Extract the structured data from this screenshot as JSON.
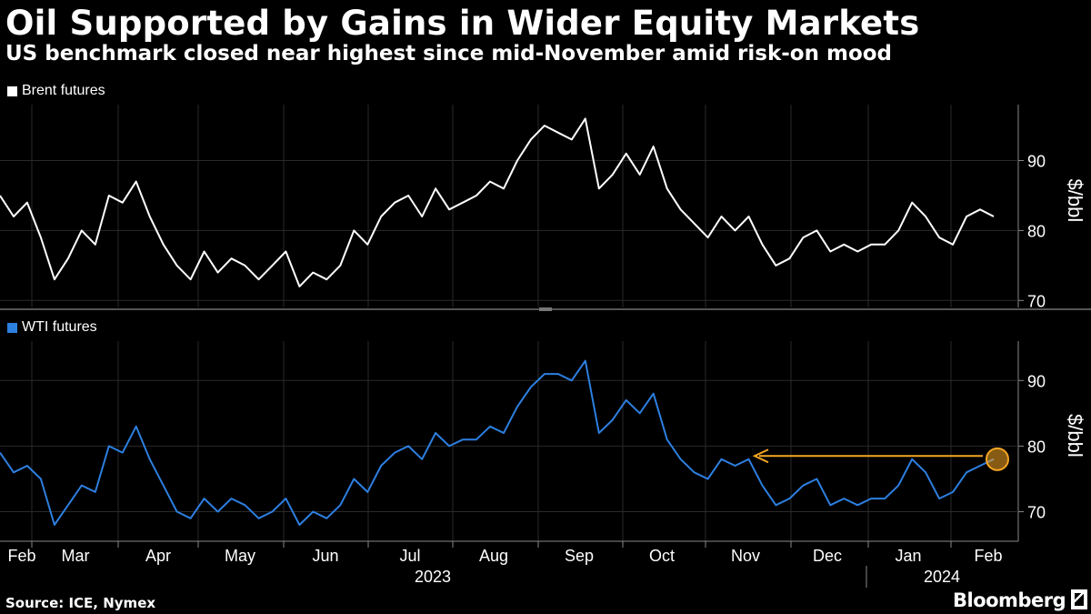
{
  "title": "Oil Supported by Gains in Wider Equity Markets",
  "subtitle": "US benchmark closed near highest since mid-November amid risk-on mood",
  "source": "Source: ICE, Nymex",
  "brand": "Bloomberg",
  "colors": {
    "brent": "#ffffff",
    "wti": "#2d7fe0",
    "annotation": "#f5a623",
    "grid": "#2a2a2a",
    "divider": "#555555"
  },
  "chart_data": [
    {
      "type": "line",
      "legend": "Brent futures",
      "ylabel": "$/bbl",
      "ylim": [
        69,
        98
      ],
      "yticks": [
        70,
        80,
        90
      ],
      "x": [
        0,
        5,
        10,
        15,
        20,
        25,
        30,
        35,
        40,
        45,
        50,
        55,
        60,
        65,
        70,
        75,
        80,
        85,
        90,
        95,
        100,
        105,
        110,
        115,
        120,
        125,
        130,
        135,
        140,
        145,
        150,
        155,
        160,
        165,
        170,
        175,
        180,
        185,
        190,
        195,
        200,
        205,
        210,
        215,
        220,
        225,
        230,
        235,
        240,
        245,
        250,
        255,
        260,
        265,
        270,
        275,
        280,
        285,
        290,
        295,
        300,
        305,
        310,
        315,
        320,
        325,
        330,
        335,
        340,
        345,
        350,
        355,
        360,
        365
      ],
      "values": [
        85,
        82,
        84,
        79,
        73,
        76,
        80,
        78,
        85,
        84,
        87,
        82,
        78,
        75,
        73,
        77,
        74,
        76,
        75,
        73,
        75,
        77,
        72,
        74,
        73,
        75,
        80,
        78,
        82,
        84,
        85,
        82,
        86,
        83,
        84,
        85,
        87,
        86,
        90,
        93,
        95,
        94,
        93,
        96,
        86,
        88,
        91,
        88,
        92,
        86,
        83,
        81,
        79,
        82,
        80,
        82,
        78,
        75,
        76,
        79,
        80,
        77,
        78,
        77,
        78,
        78,
        80,
        84,
        82,
        79,
        78,
        82,
        83,
        82
      ],
      "dates_shown": "2023-02-01 to 2024-02-05"
    },
    {
      "type": "line",
      "legend": "WTI futures",
      "ylabel": "$/bbl",
      "ylim": [
        65.5,
        96
      ],
      "yticks": [
        70,
        80,
        90
      ],
      "x": [
        0,
        5,
        10,
        15,
        20,
        25,
        30,
        35,
        40,
        45,
        50,
        55,
        60,
        65,
        70,
        75,
        80,
        85,
        90,
        95,
        100,
        105,
        110,
        115,
        120,
        125,
        130,
        135,
        140,
        145,
        150,
        155,
        160,
        165,
        170,
        175,
        180,
        185,
        190,
        195,
        200,
        205,
        210,
        215,
        220,
        225,
        230,
        235,
        240,
        245,
        250,
        255,
        260,
        265,
        270,
        275,
        280,
        285,
        290,
        295,
        300,
        305,
        310,
        315,
        320,
        325,
        330,
        335,
        340,
        345,
        350,
        355,
        360,
        365
      ],
      "values": [
        79,
        76,
        77,
        75,
        68,
        71,
        74,
        73,
        80,
        79,
        83,
        78,
        74,
        70,
        69,
        72,
        70,
        72,
        71,
        69,
        70,
        72,
        68,
        70,
        69,
        71,
        75,
        73,
        77,
        79,
        80,
        78,
        82,
        80,
        81,
        81,
        83,
        82,
        86,
        89,
        91,
        91,
        90,
        93,
        82,
        84,
        87,
        85,
        88,
        81,
        78,
        76,
        75,
        78,
        77,
        78,
        74,
        71,
        72,
        74,
        75,
        71,
        72,
        71,
        72,
        72,
        74,
        78,
        76,
        72,
        73,
        76,
        77,
        78
      ],
      "annotation": "arrow pointing to mid-November level from latest close",
      "annotation_value": 78.5
    }
  ],
  "x_axis": {
    "months": [
      "Feb",
      "Mar",
      "Apr",
      "May",
      "Jun",
      "Jul",
      "Aug",
      "Sep",
      "Oct",
      "Nov",
      "Dec",
      "Jan",
      "Feb"
    ],
    "years": [
      "2023",
      "2024"
    ]
  }
}
